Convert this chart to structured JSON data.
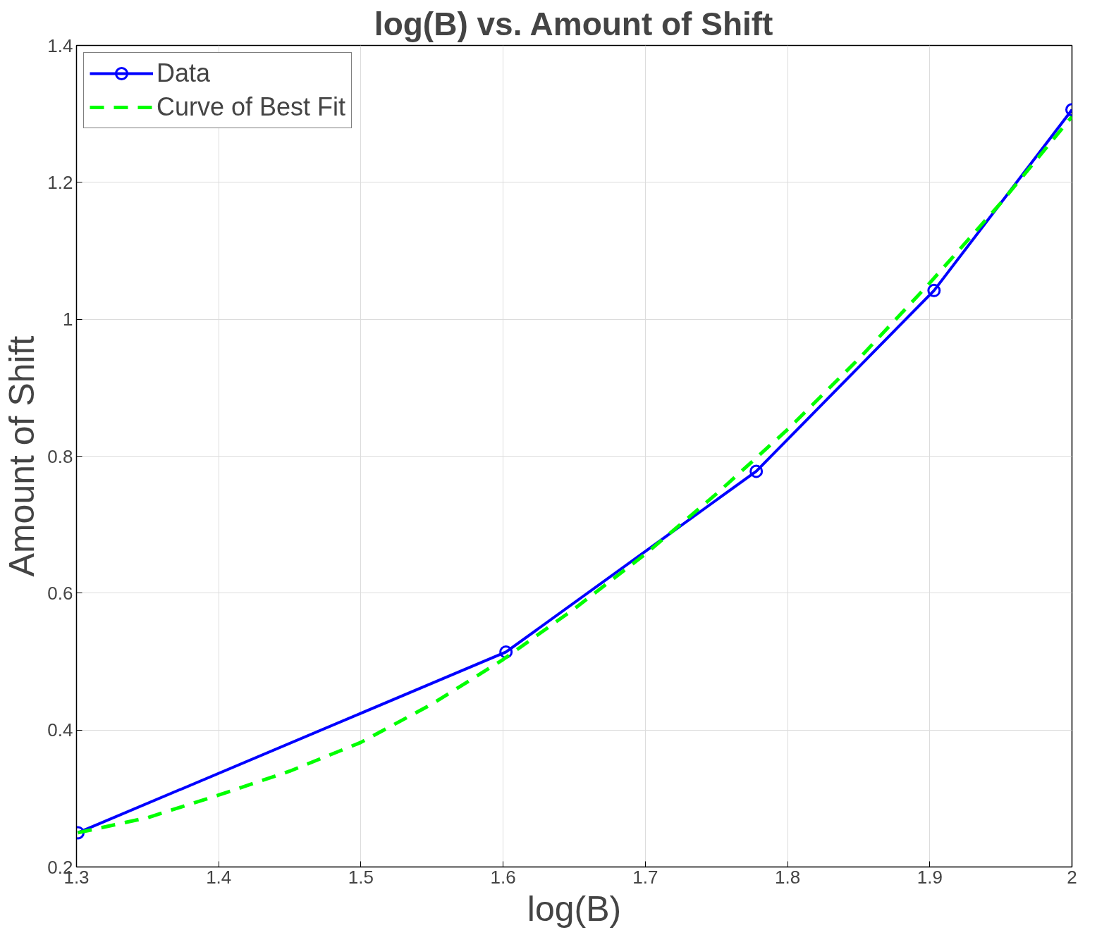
{
  "chart_data": {
    "type": "line",
    "title": "log(B) vs. Amount of Shift",
    "xlabel": "log(B)",
    "ylabel": "Amount of Shift",
    "series": [
      {
        "name": "Data",
        "color": "#0000ff",
        "marker": "circle",
        "line_style": "solid",
        "x": [
          1.301,
          1.602,
          1.778,
          1.903,
          2.0
        ],
        "values": [
          0.25,
          0.514,
          0.778,
          1.042,
          1.306
        ]
      },
      {
        "name": "Curve of Best Fit",
        "color": "#00ff00",
        "marker": "none",
        "line_style": "dashed",
        "x": [
          1.301,
          1.35,
          1.4,
          1.45,
          1.5,
          1.55,
          1.6,
          1.65,
          1.7,
          1.75,
          1.8,
          1.85,
          1.9,
          1.95,
          2.0
        ],
        "values": [
          0.25,
          0.272,
          0.305,
          0.34,
          0.382,
          0.438,
          0.503,
          0.577,
          0.657,
          0.745,
          0.839,
          0.942,
          1.053,
          1.17,
          1.296
        ]
      }
    ],
    "xlim": [
      1.3,
      2.0
    ],
    "xticks": [
      1.3,
      1.4,
      1.5,
      1.6,
      1.7,
      1.8,
      1.9,
      2
    ],
    "ylim": [
      0.2,
      1.4
    ],
    "yticks": [
      0.2,
      0.4,
      0.6,
      0.8,
      1,
      1.2,
      1.4
    ],
    "grid": true,
    "legend": "top left"
  }
}
